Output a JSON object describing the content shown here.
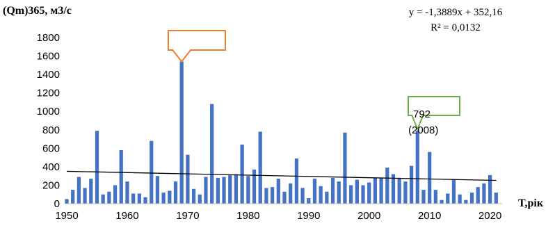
{
  "chart_data": {
    "type": "bar",
    "ylabel": "(Qm)365, м3/с",
    "xlabel": "T,рік",
    "ylim": [
      0,
      1800
    ],
    "xlim": [
      1950,
      2022
    ],
    "yticks": [
      0,
      200,
      400,
      600,
      800,
      1000,
      1200,
      1400,
      1600,
      1800
    ],
    "xticks": [
      1950,
      1960,
      1970,
      1980,
      1990,
      2000,
      2010,
      2020
    ],
    "bar_color": "#4472C4",
    "series": [
      {
        "x": [
          1950,
          1951,
          1952,
          1953,
          1954,
          1955,
          1956,
          1957,
          1958,
          1959,
          1960,
          1961,
          1962,
          1963,
          1964,
          1965,
          1966,
          1967,
          1968,
          1969,
          1970,
          1971,
          1972,
          1973,
          1974,
          1975,
          1976,
          1977,
          1978,
          1979,
          1980,
          1981,
          1982,
          1983,
          1984,
          1985,
          1986,
          1987,
          1988,
          1989,
          1990,
          1991,
          1992,
          1993,
          1994,
          1995,
          1996,
          1997,
          1998,
          1999,
          2000,
          2001,
          2002,
          2003,
          2004,
          2005,
          2006,
          2007,
          2008,
          2009,
          2010,
          2011,
          2012,
          2013,
          2014,
          2015,
          2016,
          2017,
          2018,
          2019,
          2020,
          2021
        ],
        "values": [
          50,
          150,
          290,
          170,
          270,
          790,
          100,
          130,
          200,
          580,
          240,
          110,
          110,
          70,
          680,
          300,
          120,
          140,
          240,
          1540,
          530,
          160,
          100,
          290,
          1080,
          280,
          290,
          310,
          320,
          640,
          300,
          370,
          780,
          170,
          180,
          270,
          130,
          220,
          490,
          170,
          60,
          270,
          190,
          130,
          280,
          240,
          770,
          200,
          260,
          200,
          230,
          280,
          280,
          390,
          320,
          280,
          240,
          410,
          792,
          150,
          560,
          150,
          40,
          110,
          260,
          100,
          40,
          120,
          180,
          220,
          310,
          120
        ]
      }
    ],
    "trendline": {
      "equation": "y = -1,3889x + 352,16",
      "r2": "R² = 0,0132",
      "slope": -1.3889,
      "intercept": 352.16,
      "color": "#000000"
    },
    "annotations": [
      {
        "year": 1969,
        "value": 1540,
        "text": "",
        "box_color": "#ED7D31"
      },
      {
        "year": 2008,
        "value": 792,
        "text": "792",
        "subtext": "(2008)",
        "box_color": "#70AD47"
      }
    ]
  }
}
